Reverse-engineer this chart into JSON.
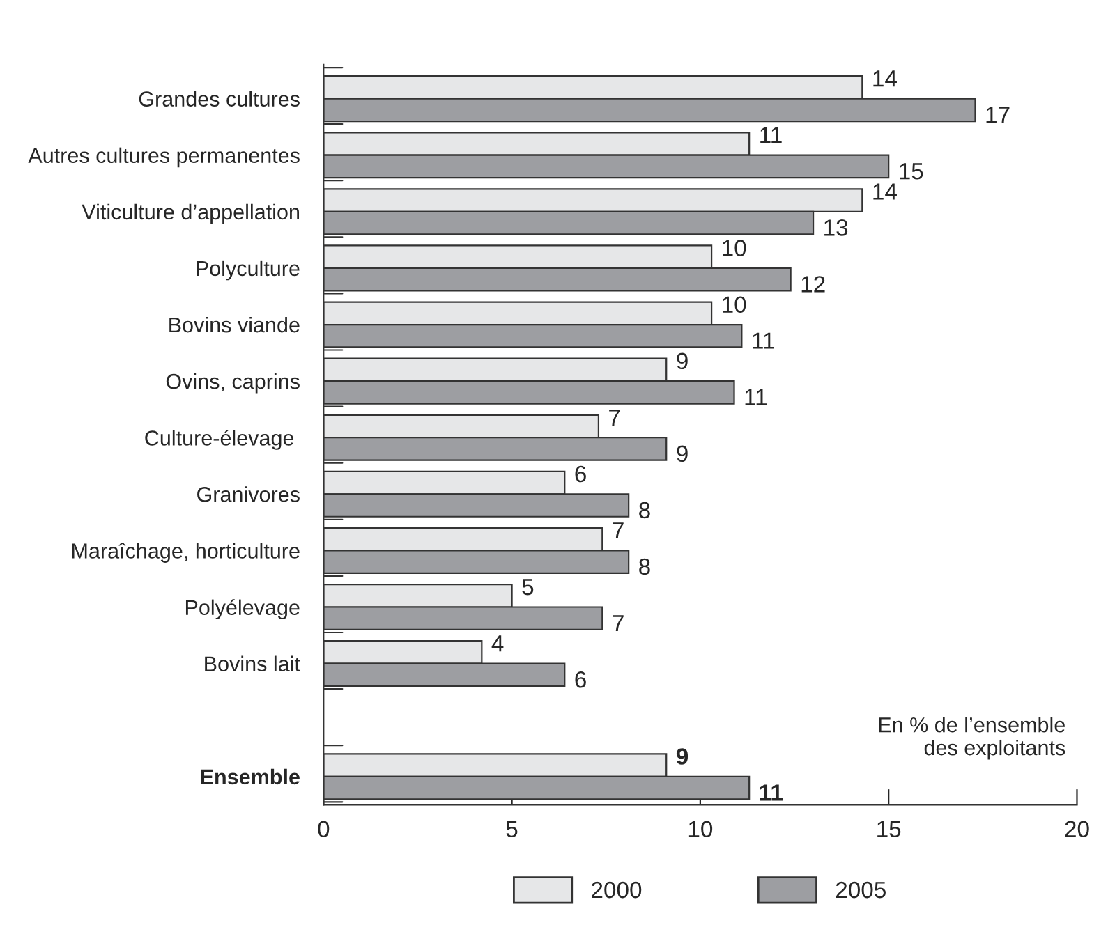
{
  "chart_data": {
    "type": "bar",
    "orientation": "horizontal",
    "categories": [
      "Grandes cultures",
      "Autres cultures permanentes",
      "Viticulture d’appellation",
      "Polyculture",
      "Bovins viande",
      "Ovins, caprins",
      "Culture-élevage ",
      "Granivores",
      "Maraîchage, horticulture",
      "Polyélevage",
      "Bovins lait",
      null,
      "Ensemble"
    ],
    "series": [
      {
        "name": "2000",
        "color": "#e6e7e8",
        "values": [
          14.3,
          11.3,
          14.3,
          10.3,
          10.3,
          9.1,
          7.3,
          6.4,
          7.4,
          5.0,
          4.2,
          null,
          9.1
        ],
        "value_labels": [
          "14",
          "11",
          "14",
          "10",
          "10",
          "9",
          "7",
          "6",
          "7",
          "5",
          "4",
          null,
          "9"
        ]
      },
      {
        "name": "2005",
        "color": "#9d9ea2",
        "values": [
          17.3,
          15.0,
          13.0,
          12.4,
          11.1,
          10.9,
          9.1,
          8.1,
          8.1,
          7.4,
          6.4,
          null,
          11.3
        ],
        "value_labels": [
          "17",
          "15",
          "13",
          "12",
          "11",
          "11",
          "9",
          "8",
          "8",
          "7",
          "6",
          null,
          "11"
        ]
      }
    ],
    "xlim": [
      0,
      20
    ],
    "xticks": [
      0,
      5,
      10,
      15,
      20
    ],
    "grid": false,
    "legend": "bottom",
    "annotations": [
      "En % de l’ensemble\ndes exploitants"
    ]
  }
}
